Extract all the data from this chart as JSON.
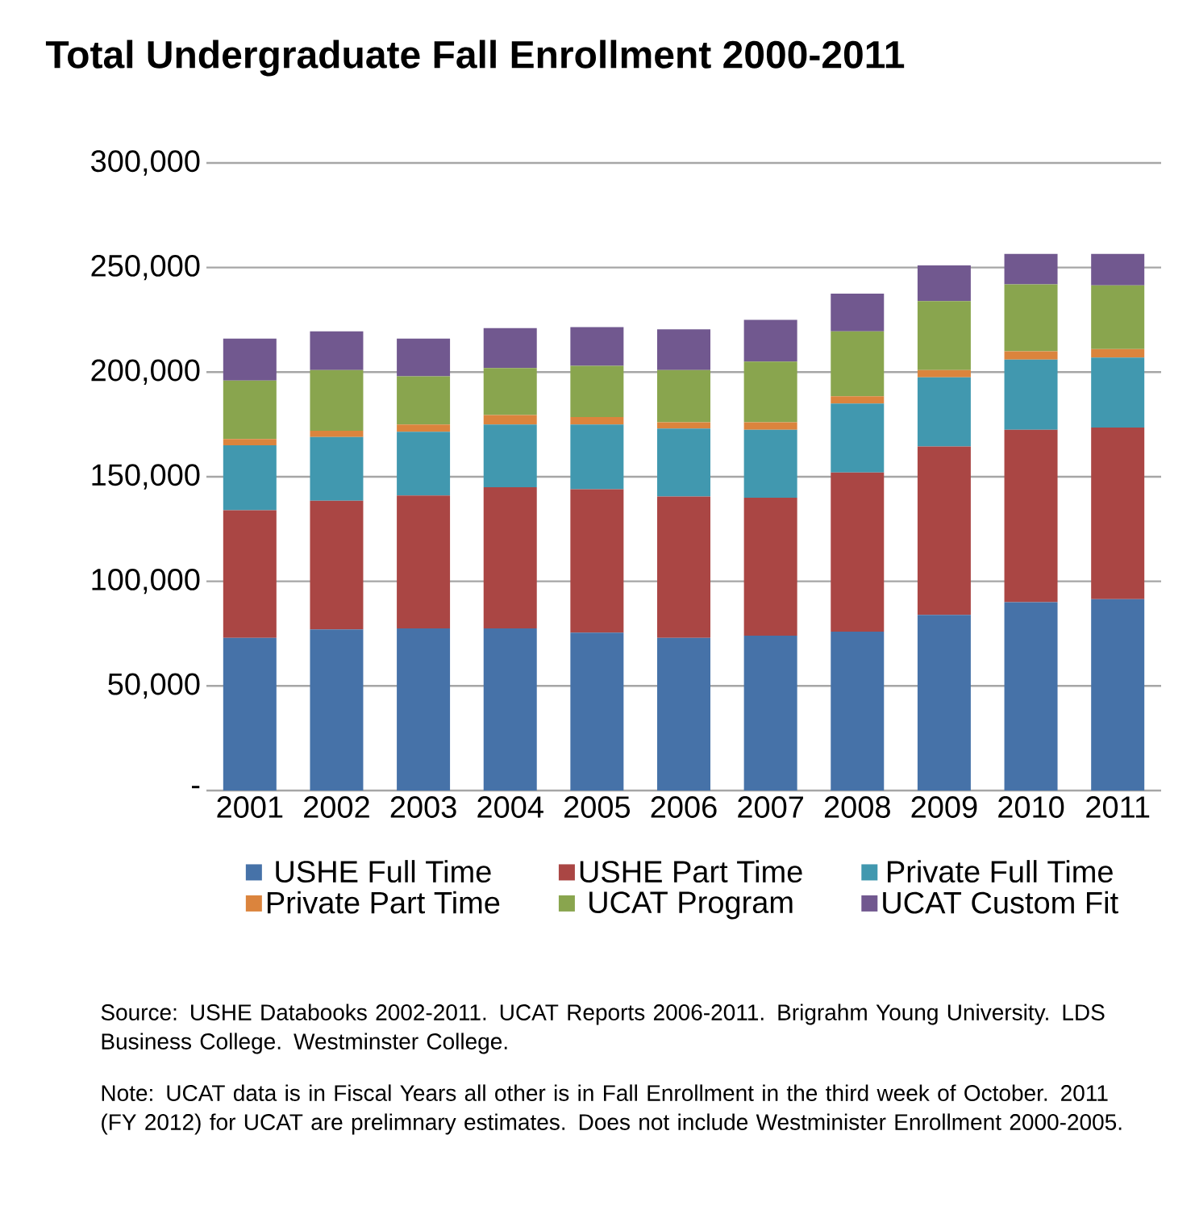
{
  "chart_data": {
    "type": "bar",
    "stacked": true,
    "title": "Total Undergraduate Fall Enrollment 2000-2011",
    "categories": [
      "2001",
      "2002",
      "2003",
      "2004",
      "2005",
      "2006",
      "2007",
      "2008",
      "2009",
      "2010",
      "2011"
    ],
    "series": [
      {
        "name": "USHE Full Time",
        "color": "#4672a8",
        "values": [
          73000,
          77000,
          77500,
          77500,
          75500,
          73000,
          74000,
          76000,
          84000,
          90000,
          91500
        ]
      },
      {
        "name": "USHE Part Time",
        "color": "#aa4644",
        "values": [
          61000,
          61500,
          63500,
          67500,
          68500,
          67500,
          66000,
          76000,
          80500,
          82500,
          82000
        ]
      },
      {
        "name": "Private Full Time",
        "color": "#4198af",
        "values": [
          31000,
          30500,
          30500,
          30000,
          31000,
          32500,
          32500,
          33000,
          33000,
          33500,
          33500
        ]
      },
      {
        "name": "Private Part Time",
        "color": "#db843d",
        "values": [
          3000,
          3000,
          3500,
          4500,
          3500,
          3000,
          3500,
          3500,
          3500,
          4000,
          4000
        ]
      },
      {
        "name": "UCAT Program",
        "color": "#89a54e",
        "values": [
          28000,
          29000,
          23000,
          22500,
          24500,
          25000,
          29000,
          31000,
          33000,
          32000,
          30500
        ]
      },
      {
        "name": "UCAT Custom Fit",
        "color": "#71588f",
        "values": [
          20000,
          18500,
          18000,
          19000,
          18500,
          19500,
          20000,
          18000,
          17000,
          14500,
          15000
        ]
      }
    ],
    "ylim": [
      0,
      300000
    ],
    "yticks": [
      {
        "value": 0,
        "label": "-"
      },
      {
        "value": 50000,
        "label": "50,000"
      },
      {
        "value": 100000,
        "label": "100,000"
      },
      {
        "value": 150000,
        "label": "150,000"
      },
      {
        "value": 200000,
        "label": "200,000"
      },
      {
        "value": 250000,
        "label": "250,000"
      },
      {
        "value": 300000,
        "label": "300,000"
      }
    ],
    "grid": "y",
    "legend": "bottom",
    "annotations": [
      "Source: USHE Databooks 2002-2011. UCAT Reports 2006-2011. Brigrahm Young University. LDS Business College. Westminster College.",
      "Note: UCAT data is in Fiscal Years all other is in Fall Enrollment in the third week of October. 2011 (FY 2012) for UCAT are prelimnary estimates. Does not include Westminister Enrollment 2000-2005."
    ]
  }
}
